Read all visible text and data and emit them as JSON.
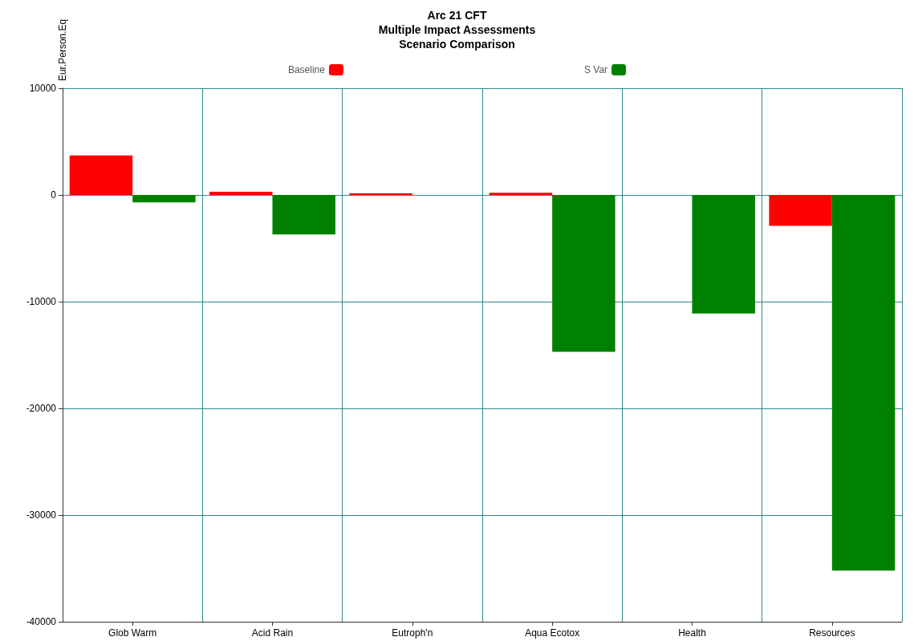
{
  "chart_data": {
    "type": "bar",
    "title": "Arc 21 CFT\nMultiple Impact Assessments\nScenario Comparison",
    "ylabel": "Eur.Person.Eq",
    "categories": [
      "Glob Warm",
      "Acid Rain",
      "Eutroph'n",
      "Aqua Ecotox",
      "Health",
      "Resources"
    ],
    "series": [
      {
        "name": "Baseline",
        "color": "#ff0000",
        "values": [
          3700,
          300,
          150,
          200,
          0,
          -2900
        ]
      },
      {
        "name": "S Var",
        "color": "#008000",
        "values": [
          -700,
          -3700,
          0,
          -14700,
          -11100,
          -35200
        ]
      }
    ],
    "ylim": [
      -40000,
      10000
    ],
    "yticks": [
      -40000,
      -30000,
      -20000,
      -10000,
      0,
      10000
    ],
    "grid": true,
    "legend": "top"
  }
}
